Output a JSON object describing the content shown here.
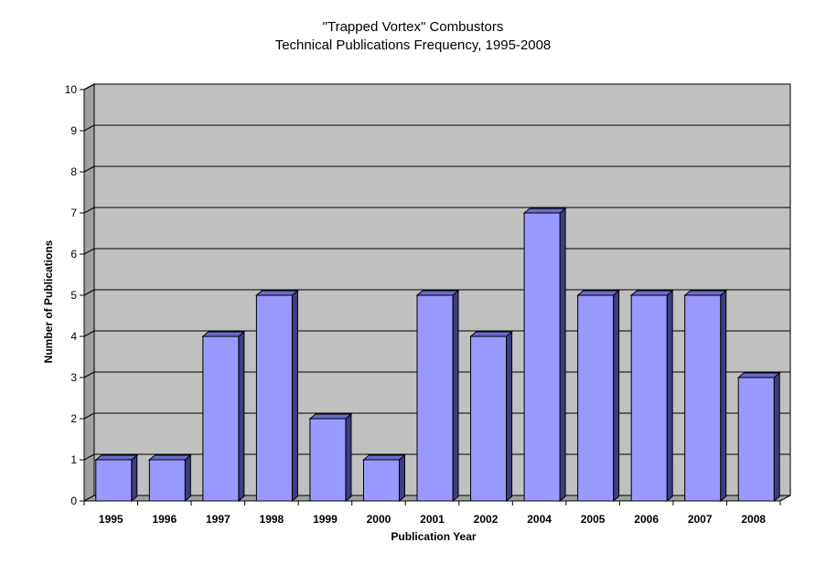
{
  "chart_data": {
    "type": "bar",
    "title": "\"Trapped Vortex\" Combustors",
    "subtitle": "Technical Publications Frequency, 1995-2008",
    "xlabel": "Publication Year",
    "ylabel": "Number of Publications",
    "categories": [
      "1995",
      "1996",
      "1997",
      "1998",
      "1999",
      "2000",
      "2001",
      "2002",
      "2004",
      "2005",
      "2006",
      "2007",
      "2008"
    ],
    "values": [
      1,
      1,
      4,
      5,
      2,
      1,
      5,
      4,
      7,
      5,
      5,
      5,
      3
    ],
    "ylim": [
      0,
      10
    ],
    "yticks": [
      "0",
      "1",
      "2",
      "3",
      "4",
      "5",
      "6",
      "7",
      "8",
      "9",
      "10"
    ],
    "grid": true,
    "legend": "none",
    "style": "3d-bar",
    "colors": {
      "bar_front": "#9999ff",
      "bar_side": "#3d3d80",
      "bar_top": "#6b6bcc",
      "plot_wall": "#c0c0c0",
      "gridline": "#000000"
    }
  }
}
